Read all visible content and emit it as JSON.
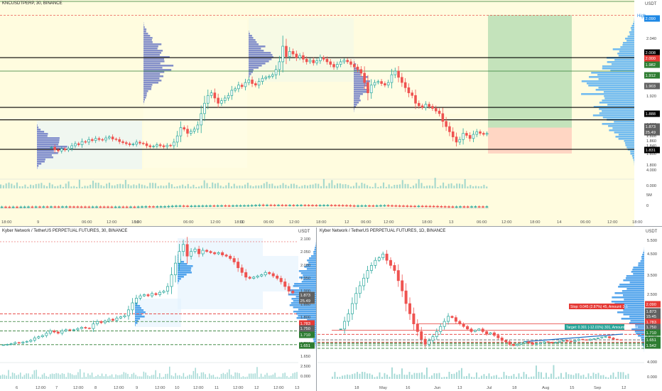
{
  "top": {
    "title": "KNCUSDTPERP, 30, BINANCE",
    "currency": "USDT",
    "high_label": "High",
    "ticks": [
      "2.080",
      "2.040",
      "2.000",
      "1.960",
      "1.920",
      "1.880",
      "1.840",
      "1.800",
      "1.920",
      "1.900",
      "1.880",
      "1.860",
      "1.840",
      "1.820",
      "1.800",
      "4.000",
      "0.000",
      "5M",
      "0"
    ],
    "badges": [
      {
        "text": "2.090",
        "color": "#1e88e5"
      },
      {
        "text": "2.008",
        "color": "#000000"
      },
      {
        "text": "2.000",
        "color": "#e53935"
      },
      {
        "text": "1.982",
        "color": "#2e7d32"
      },
      {
        "text": "1.912",
        "color": "#2e7d32"
      },
      {
        "text": "1.903",
        "color": "#616161"
      },
      {
        "text": "1.888",
        "color": "#000000"
      },
      {
        "text": "1.873",
        "color": "#616161"
      },
      {
        "text": "25.49",
        "color": "#616161"
      },
      {
        "text": "1.831",
        "color": "#000000"
      }
    ],
    "time_labels": [
      "18:00",
      "9",
      "06:00",
      "12:00",
      "18:00",
      "10",
      "06:00",
      "12:00",
      "18:00",
      "11",
      "06:00",
      "12:00",
      "18:00",
      "12",
      "06:00",
      "12:00",
      "18:00",
      "13",
      "06:00",
      "12:00",
      "18:00",
      "14",
      "06:00",
      "12:00",
      "18:00"
    ],
    "chart_data": {
      "type": "candlestick",
      "x_unit": "30-minute bars",
      "price_range": [
        1.79,
        2.1
      ],
      "candles_close": [
        1.835,
        1.83,
        1.828,
        1.832,
        1.83,
        1.833,
        1.838,
        1.842,
        1.84,
        1.846,
        1.845,
        1.85,
        1.848,
        1.852,
        1.85,
        1.849,
        1.853,
        1.855,
        1.851,
        1.85,
        1.846,
        1.844,
        1.842,
        1.84,
        1.841,
        1.845,
        1.843,
        1.842,
        1.838,
        1.836,
        1.837,
        1.84,
        1.838,
        1.836,
        1.839,
        1.838,
        1.845,
        1.857,
        1.873,
        1.87,
        1.862,
        1.866,
        1.87,
        1.878,
        1.9,
        1.92,
        1.935,
        1.94,
        1.93,
        1.92,
        1.925,
        1.93,
        1.935,
        1.945,
        1.948,
        1.955,
        1.952,
        1.96,
        1.965,
        1.958,
        1.955,
        1.962,
        1.968,
        1.97,
        1.972,
        1.975,
        1.985,
        2.0,
        2.03,
        2.01,
        2.02,
        2.015,
        2.008,
        2.012,
        2.005,
        2.0,
        2.003,
        1.998,
        2.002,
        2.008,
        2.005,
        2.0,
        1.995,
        1.99,
        1.995,
        2.0,
        2.003,
        2.0,
        1.995,
        1.99,
        1.985,
        1.978,
        1.96,
        1.94,
        1.955,
        1.96,
        1.962,
        1.958,
        1.955,
        1.96,
        1.975,
        1.982,
        1.97,
        1.96,
        1.95,
        1.94,
        1.935,
        1.92,
        1.915,
        1.912,
        1.918,
        1.914,
        1.91,
        1.905,
        1.9,
        1.885,
        1.875,
        1.865,
        1.855,
        1.845,
        1.85,
        1.862,
        1.858,
        1.852,
        1.86,
        1.865,
        1.862,
        1.86,
        1.862
      ],
      "key_levels": [
        2.008,
        1.982,
        1.912,
        1.888,
        1.831
      ],
      "long_position": {
        "entry": 1.873,
        "target": 2.09,
        "stop": 1.823
      }
    }
  },
  "bottom_left": {
    "title": "Kyber Network / TetherUS PERPETUAL FUTURES, 30, BINANCE",
    "currency": "USDT",
    "ticks": [
      "2.100",
      "2.050",
      "2.000",
      "1.950",
      "1.900",
      "1.850",
      "1.800",
      "1.750",
      "1.700",
      "1.650",
      "2.500",
      "0.000"
    ],
    "badges": [
      {
        "text": "1.873",
        "color": "#616161"
      },
      {
        "text": "25.49",
        "color": "#616161"
      },
      {
        "text": "1.783",
        "color": "#e53935"
      },
      {
        "text": "1.750",
        "color": "#616161"
      },
      {
        "text": "1.710",
        "color": "#2e7d32"
      },
      {
        "text": "1.651",
        "color": "#2e7d32"
      }
    ],
    "time_labels": [
      "6",
      "12:00",
      "7",
      "12:00",
      "8",
      "12:00",
      "9",
      "12:00",
      "10",
      "12:00",
      "11",
      "12:00",
      "12",
      "12:00",
      "13"
    ],
    "chart_data": {
      "type": "candlestick",
      "price_range": [
        1.62,
        2.11
      ],
      "candles_close": [
        1.65,
        1.652,
        1.655,
        1.66,
        1.658,
        1.662,
        1.665,
        1.67,
        1.68,
        1.685,
        1.69,
        1.7,
        1.71,
        1.705,
        1.7,
        1.71,
        1.715,
        1.712,
        1.715,
        1.72,
        1.725,
        1.722,
        1.72,
        1.74,
        1.75,
        1.745,
        1.752,
        1.76,
        1.755,
        1.765,
        1.77,
        1.775,
        1.8,
        1.83,
        1.85,
        1.86,
        1.865,
        1.86,
        1.87,
        1.865,
        1.875,
        1.88,
        1.9,
        1.95,
        2.0,
        2.05,
        2.08,
        2.03,
        2.05,
        2.06,
        2.04,
        2.055,
        2.05,
        2.045,
        2.04,
        2.045,
        2.035,
        2.03,
        2.02,
        2.005,
        1.98,
        1.96,
        1.94,
        1.935,
        1.94,
        1.945,
        1.95,
        1.96,
        1.955,
        1.945,
        1.935,
        1.92,
        1.9,
        1.88,
        1.873
      ],
      "key_levels": [
        1.783,
        1.75,
        1.71,
        1.651
      ]
    }
  },
  "bottom_right": {
    "title": "Kyber Network / TetherUS PERPETUAL FUTURES, 1D, BINANCE",
    "currency": "USDT",
    "ticks": [
      "5.500",
      "4.500",
      "3.500",
      "2.500",
      "2.100",
      "1.900",
      "1.700",
      "1.500",
      "4.000",
      "0.000"
    ],
    "badges": [
      {
        "text": "2.090",
        "color": "#e53935"
      },
      {
        "text": "1.873",
        "color": "#616161"
      },
      {
        "text": "15:45",
        "color": "#616161"
      },
      {
        "text": "1.783",
        "color": "#e53935"
      },
      {
        "text": "1.750",
        "color": "#616161"
      },
      {
        "text": "1.710",
        "color": "#2e7d32"
      },
      {
        "text": "1.651",
        "color": "#2e7d32"
      },
      {
        "text": "1.542",
        "color": "#2e7d32"
      }
    ],
    "stop_label": "Stop: 0.045 (2.87%) 45, Amount: 2.1",
    "target_label": "Target: 0.301 (-12.01%) 301, Amount: 2.11.44",
    "time_labels": [
      "18",
      "May",
      "16",
      "Jun",
      "13",
      "Jul",
      "18",
      "Aug",
      "15",
      "Sep",
      "12"
    ],
    "chart_data": {
      "type": "candlestick",
      "x_unit": "1-day bars",
      "price_range": [
        1.4,
        5.9
      ],
      "candles_close": [
        2.3,
        2.6,
        2.9,
        3.3,
        3.7,
        4.0,
        4.3,
        4.6,
        4.8,
        5.0,
        5.1,
        5.25,
        5.0,
        4.8,
        4.6,
        4.2,
        3.8,
        3.3,
        2.9,
        2.5,
        2.2,
        1.9,
        1.7,
        1.85,
        2.0,
        2.2,
        2.4,
        2.6,
        2.8,
        2.75,
        2.6,
        2.5,
        2.4,
        2.3,
        2.2,
        2.25,
        2.3,
        2.2,
        2.1,
        2.15,
        2.05,
        1.95,
        1.85,
        1.8,
        1.7,
        1.65,
        1.7,
        1.75,
        1.8,
        1.75,
        1.7,
        1.72,
        1.76,
        1.8,
        1.78,
        1.75,
        1.78,
        1.82,
        1.85,
        1.82,
        1.8,
        1.85,
        1.9,
        1.88,
        1.86,
        1.9,
        1.92,
        1.95,
        1.98,
        2.0,
        1.95,
        1.9,
        1.88,
        1.873
      ],
      "key_levels": [
        2.09,
        1.873,
        1.783,
        1.75,
        1.71,
        1.651,
        1.542
      ]
    }
  }
}
